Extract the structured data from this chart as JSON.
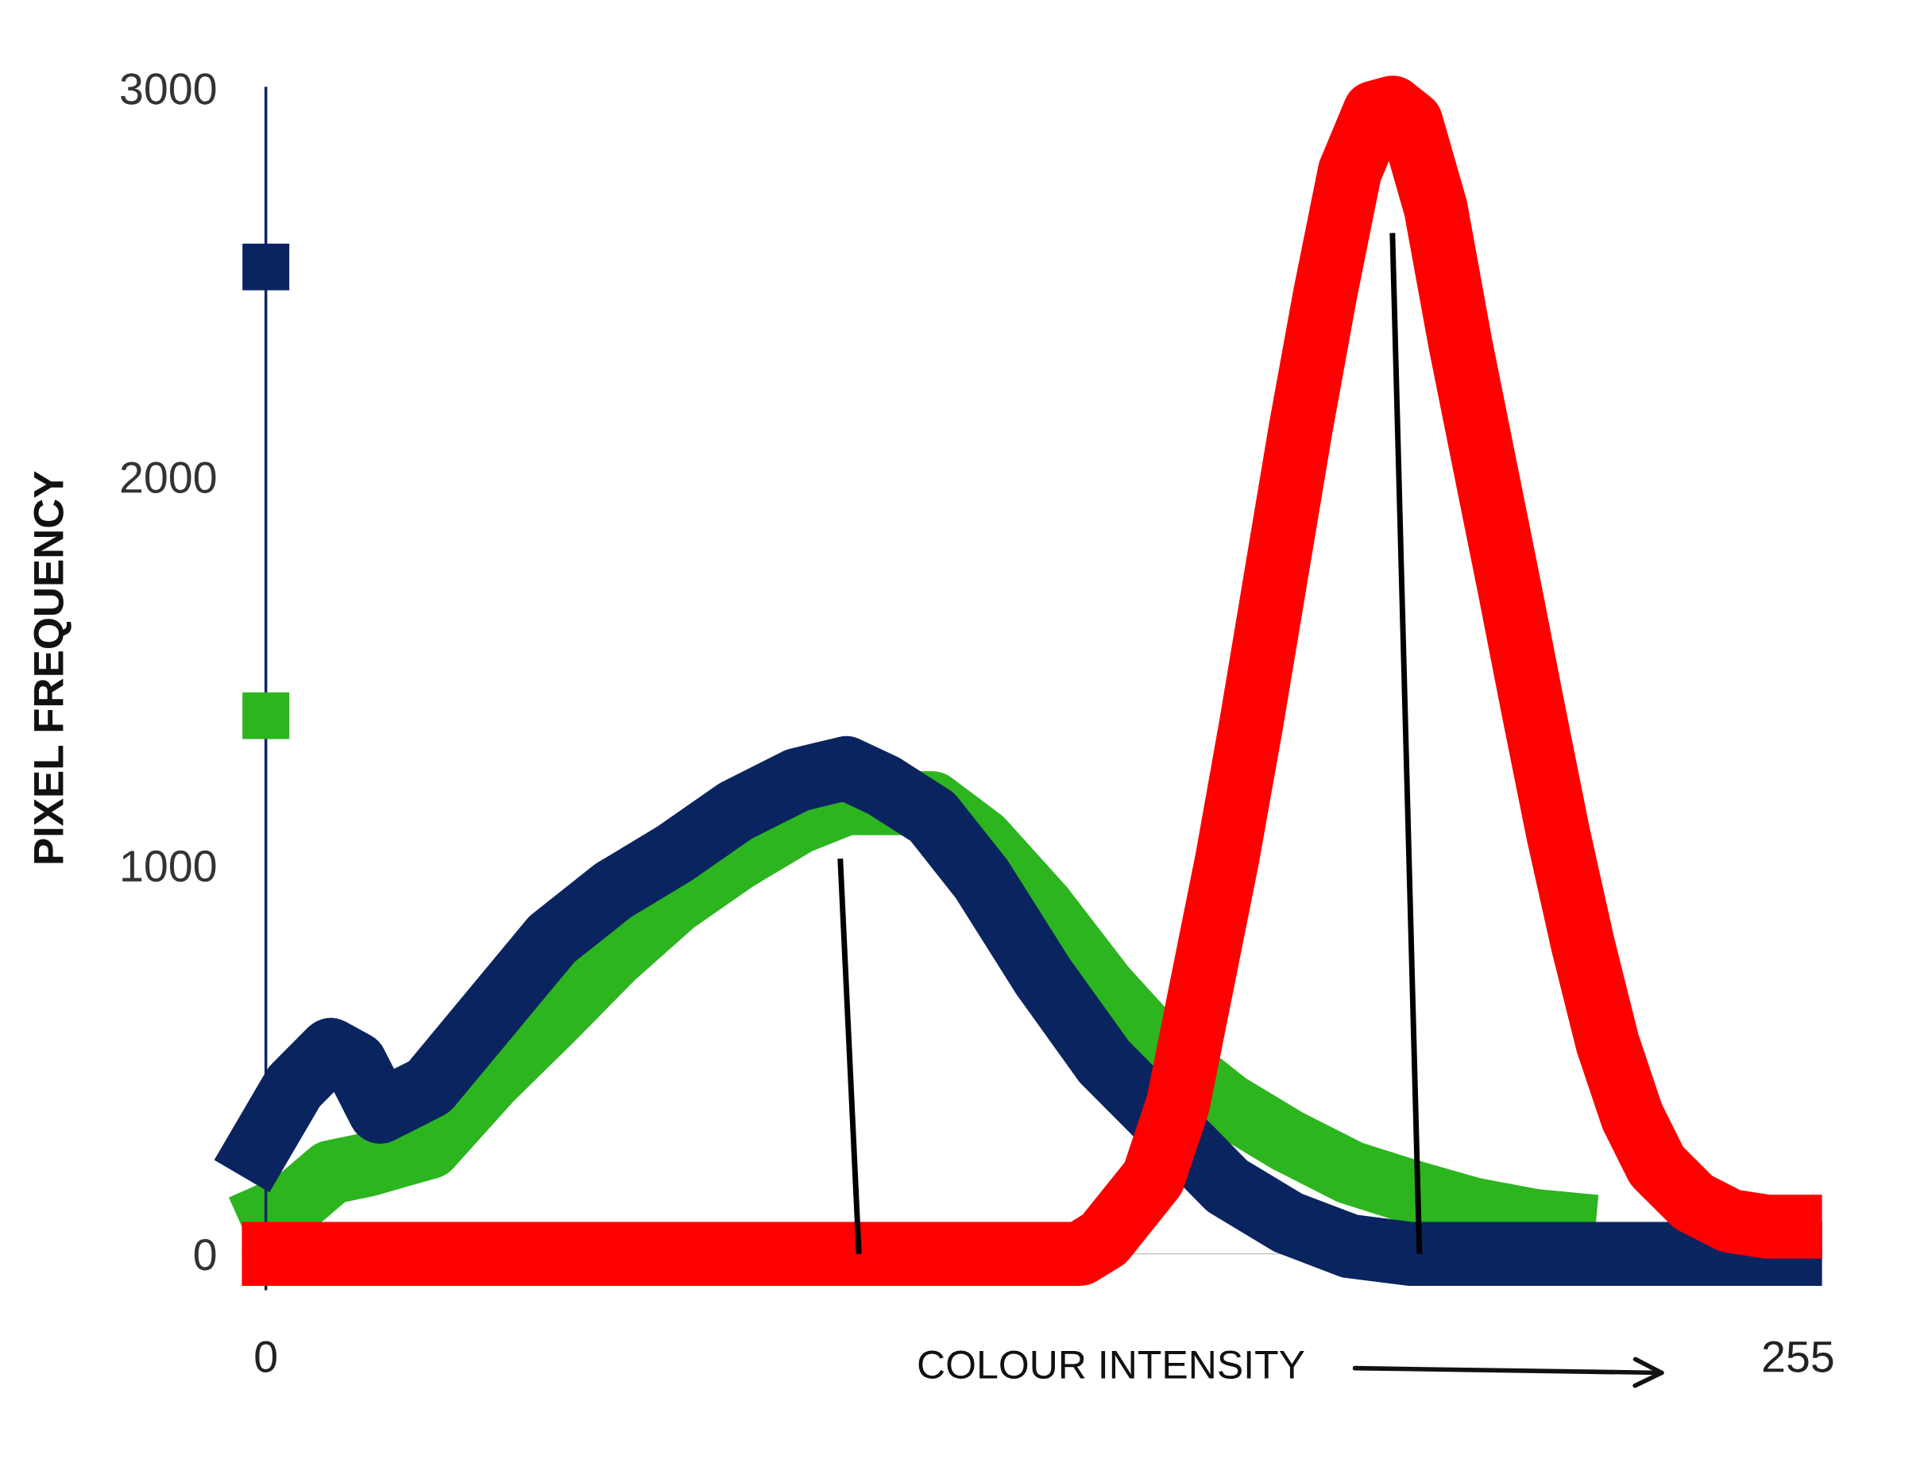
{
  "chart_data": {
    "type": "line",
    "xlabel": "COLOUR INTENSITY",
    "ylabel": "PIXEL FREQUENCY",
    "xlim": [
      -4,
      259
    ],
    "xticks": [
      0,
      255
    ],
    "ylim": [
      -90,
      3000
    ],
    "yticks": [
      0,
      1000,
      2000,
      3000
    ],
    "grid": false,
    "legend": false,
    "series": [
      {
        "color": "#2db51f",
        "x": [
          -4,
          4.7,
          10.8,
          17,
          27.2,
          37.4,
          47.6,
          57.8,
          68,
          78.2,
          88.5,
          96.6,
          110.9,
          119.1,
          129.3,
          139.5,
          149.8,
          160,
          170.2,
          180.4,
          190.6,
          200.8,
          211,
          221.3
        ],
        "values": [
          70,
          130,
          210,
          230,
          275,
          450,
          605,
          765,
          905,
          1015,
          1110,
          1160,
          1160,
          1065,
          890,
          685,
          510,
          385,
          290,
          210,
          160,
          115,
          85,
          70
        ]
      },
      {
        "color": "#0a2460",
        "x": [
          -4,
          4.7,
          10.8,
          14.9,
          19,
          27.2,
          37.4,
          47.6,
          57.8,
          68,
          78.2,
          88.5,
          96.6,
          102.8,
          110.9,
          119.1,
          129.3,
          139.5,
          149.8,
          160,
          170.2,
          180.4,
          190.6,
          259
        ],
        "values": [
          200,
          430,
          525,
          490,
          366,
          430,
          620,
          810,
          935,
          1030,
          1140,
          1220,
          1250,
          1205,
          1125,
          965,
          715,
          495,
          335,
          175,
          80,
          20,
          0,
          0
        ]
      },
      {
        "color": "#ff0000",
        "x": [
          -4,
          135.5,
          139.5,
          147.7,
          151.8,
          155.9,
          160,
          164,
          168.1,
          172.2,
          176.3,
          180.4,
          184.5,
          187.5,
          190.6,
          194.7,
          198.8,
          202.9,
          207,
          211,
          215.1,
          219.2,
          223.3,
          227.4,
          231.5,
          237.6,
          243.7,
          249.9,
          259
        ],
        "values": [
          0,
          0,
          38,
          196,
          385,
          701,
          1017,
          1364,
          1743,
          2122,
          2470,
          2785,
          2937,
          2950,
          2912,
          2691,
          2343,
          2027,
          1712,
          1396,
          1080,
          796,
          543,
          354,
          227,
          133,
          85,
          70,
          70
        ]
      },
      {
        "color": "#000000",
        "x": [
          95.6,
          98.7
        ],
        "values": [
          1017,
          0
        ]
      },
      {
        "color": "#000000",
        "x": [
          187.5,
          192
        ],
        "values": [
          2627,
          0
        ]
      },
      {
        "type": "bar",
        "color": "#0a2460",
        "x": [
          0
        ],
        "base": [
          2480
        ],
        "values": [
          120
        ]
      },
      {
        "type": "bar",
        "color": "#2db51f",
        "x": [
          0
        ],
        "base": [
          1325
        ],
        "values": [
          120
        ]
      }
    ]
  }
}
